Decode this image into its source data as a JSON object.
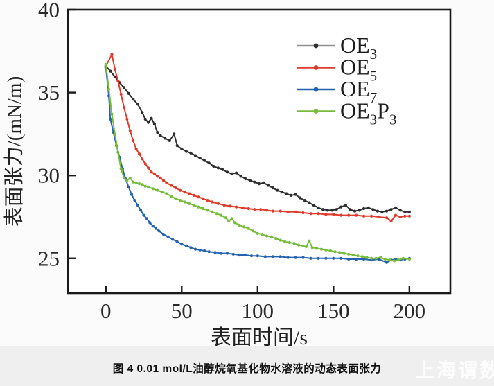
{
  "page": {
    "background": "#fbfbfb",
    "band_background": "#efefef"
  },
  "caption": {
    "text": "图 4  0.01 mol/L油醇烷氧基化物水溶液的动态表面张力"
  },
  "watermark": {
    "text": "上海谓数"
  },
  "chart_data": {
    "type": "line",
    "title": "",
    "xlabel": "表面时间/s",
    "ylabel": "表面张力/(mN/m)",
    "xlim": [
      -25,
      227
    ],
    "ylim": [
      22.9,
      40
    ],
    "xticks": [
      0,
      50,
      100,
      150,
      200
    ],
    "yticks": [
      25,
      30,
      35,
      40
    ],
    "grid": false,
    "legend_position": "upper-right-inside",
    "frame_color": "#1a1a1a",
    "tick_label_color": "#2a2a2a",
    "series": [
      {
        "name": "OE3",
        "label_parts": [
          {
            "text": "OE"
          },
          {
            "sub": "3"
          }
        ],
        "color": "#2e2e2e",
        "legend_line_color": "#8f8f8f",
        "points": [
          [
            0,
            36.6
          ],
          [
            3,
            36.3
          ],
          [
            6,
            35.95
          ],
          [
            9,
            35.6
          ],
          [
            12,
            35.3
          ],
          [
            15,
            34.95
          ],
          [
            18,
            34.6
          ],
          [
            21,
            34.3
          ],
          [
            24,
            33.8
          ],
          [
            26,
            33.4
          ],
          [
            28,
            33.2
          ],
          [
            30,
            33.45
          ],
          [
            32,
            33.1
          ],
          [
            34,
            32.6
          ],
          [
            36,
            32.4
          ],
          [
            39,
            32.25
          ],
          [
            42,
            32.1
          ],
          [
            45,
            32.5
          ],
          [
            47,
            31.8
          ],
          [
            50,
            31.6
          ],
          [
            53,
            31.45
          ],
          [
            56,
            31.35
          ],
          [
            59,
            31.2
          ],
          [
            62,
            31.05
          ],
          [
            65,
            30.9
          ],
          [
            68,
            30.75
          ],
          [
            71,
            30.55
          ],
          [
            74,
            30.45
          ],
          [
            77,
            30.35
          ],
          [
            80,
            30.2
          ],
          [
            83,
            30.1
          ],
          [
            86,
            30.15
          ],
          [
            89,
            29.95
          ],
          [
            92,
            29.8
          ],
          [
            95,
            29.7
          ],
          [
            98,
            29.6
          ],
          [
            101,
            29.5
          ],
          [
            104,
            29.55
          ],
          [
            107,
            29.4
          ],
          [
            110,
            29.25
          ],
          [
            113,
            29.1
          ],
          [
            116,
            29.0
          ],
          [
            119,
            28.9
          ],
          [
            122,
            28.8
          ],
          [
            125,
            28.85
          ],
          [
            128,
            28.65
          ],
          [
            131,
            28.5
          ],
          [
            134,
            28.35
          ],
          [
            137,
            28.2
          ],
          [
            140,
            28.05
          ],
          [
            143,
            27.95
          ],
          [
            146,
            27.9
          ],
          [
            149,
            27.9
          ],
          [
            152,
            27.95
          ],
          [
            155,
            28.1
          ],
          [
            158,
            28.2
          ],
          [
            161,
            27.95
          ],
          [
            164,
            27.85
          ],
          [
            167,
            27.9
          ],
          [
            170,
            28.0
          ],
          [
            173,
            28.05
          ],
          [
            176,
            27.95
          ],
          [
            179,
            27.85
          ],
          [
            182,
            27.8
          ],
          [
            185,
            27.85
          ],
          [
            188,
            27.95
          ],
          [
            191,
            28.05
          ],
          [
            194,
            27.9
          ],
          [
            197,
            27.8
          ],
          [
            200,
            27.8
          ]
        ]
      },
      {
        "name": "OE5",
        "label_parts": [
          {
            "text": "OE"
          },
          {
            "sub": "5"
          }
        ],
        "color": "#e03a2b",
        "legend_line_color": "#e03a2b",
        "points": [
          [
            0,
            36.6
          ],
          [
            4,
            37.3
          ],
          [
            6,
            36.4
          ],
          [
            8,
            35.7
          ],
          [
            10,
            34.9
          ],
          [
            12,
            34.1
          ],
          [
            14,
            33.4
          ],
          [
            16,
            32.7
          ],
          [
            18,
            32.1
          ],
          [
            20,
            31.6
          ],
          [
            22,
            31.3
          ],
          [
            24,
            31.0
          ],
          [
            26,
            30.7
          ],
          [
            28,
            30.45
          ],
          [
            30,
            30.2
          ],
          [
            32,
            30.1
          ],
          [
            34,
            29.95
          ],
          [
            36,
            29.85
          ],
          [
            38,
            29.7
          ],
          [
            40,
            29.55
          ],
          [
            43,
            29.4
          ],
          [
            46,
            29.25
          ],
          [
            49,
            29.1
          ],
          [
            52,
            29.0
          ],
          [
            55,
            28.9
          ],
          [
            58,
            28.8
          ],
          [
            61,
            28.7
          ],
          [
            64,
            28.6
          ],
          [
            67,
            28.5
          ],
          [
            70,
            28.4
          ],
          [
            74,
            28.3
          ],
          [
            78,
            28.2
          ],
          [
            82,
            28.15
          ],
          [
            86,
            28.1
          ],
          [
            90,
            28.05
          ],
          [
            94,
            28.0
          ],
          [
            98,
            27.95
          ],
          [
            102,
            27.95
          ],
          [
            106,
            27.9
          ],
          [
            110,
            27.85
          ],
          [
            115,
            27.85
          ],
          [
            120,
            27.8
          ],
          [
            125,
            27.8
          ],
          [
            130,
            27.75
          ],
          [
            135,
            27.7
          ],
          [
            140,
            27.7
          ],
          [
            145,
            27.65
          ],
          [
            150,
            27.65
          ],
          [
            155,
            27.6
          ],
          [
            160,
            27.6
          ],
          [
            165,
            27.6
          ],
          [
            170,
            27.55
          ],
          [
            175,
            27.55
          ],
          [
            180,
            27.5
          ],
          [
            185,
            27.45
          ],
          [
            188,
            27.25
          ],
          [
            191,
            27.6
          ],
          [
            194,
            27.5
          ],
          [
            197,
            27.55
          ],
          [
            200,
            27.55
          ]
        ]
      },
      {
        "name": "OE7",
        "label_parts": [
          {
            "text": "OE"
          },
          {
            "sub": "7"
          }
        ],
        "color": "#2563ae",
        "legend_line_color": "#2563ae",
        "points": [
          [
            0,
            36.5
          ],
          [
            2,
            34.8
          ],
          [
            3,
            33.4
          ],
          [
            5,
            32.6
          ],
          [
            7,
            31.8
          ],
          [
            9,
            31.1
          ],
          [
            11,
            30.4
          ],
          [
            13,
            29.8
          ],
          [
            15,
            29.3
          ],
          [
            17,
            28.85
          ],
          [
            19,
            28.5
          ],
          [
            21,
            28.2
          ],
          [
            23,
            27.9
          ],
          [
            25,
            27.6
          ],
          [
            27,
            27.4
          ],
          [
            29,
            27.15
          ],
          [
            31,
            26.95
          ],
          [
            33,
            26.8
          ],
          [
            35,
            26.65
          ],
          [
            38,
            26.45
          ],
          [
            41,
            26.3
          ],
          [
            44,
            26.15
          ],
          [
            47,
            26.0
          ],
          [
            50,
            25.85
          ],
          [
            53,
            25.75
          ],
          [
            56,
            25.65
          ],
          [
            59,
            25.55
          ],
          [
            62,
            25.5
          ],
          [
            65,
            25.45
          ],
          [
            68,
            25.4
          ],
          [
            72,
            25.35
          ],
          [
            76,
            25.3
          ],
          [
            80,
            25.3
          ],
          [
            84,
            25.25
          ],
          [
            88,
            25.2
          ],
          [
            92,
            25.2
          ],
          [
            96,
            25.15
          ],
          [
            100,
            25.15
          ],
          [
            105,
            25.1
          ],
          [
            110,
            25.1
          ],
          [
            115,
            25.1
          ],
          [
            120,
            25.05
          ],
          [
            125,
            25.05
          ],
          [
            130,
            25.05
          ],
          [
            135,
            25.0
          ],
          [
            140,
            25.0
          ],
          [
            145,
            25.0
          ],
          [
            150,
            25.0
          ],
          [
            155,
            25.0
          ],
          [
            160,
            24.95
          ],
          [
            165,
            24.95
          ],
          [
            170,
            24.95
          ],
          [
            175,
            24.9
          ],
          [
            180,
            24.95
          ],
          [
            185,
            24.75
          ],
          [
            188,
            24.9
          ],
          [
            191,
            24.95
          ],
          [
            194,
            24.9
          ],
          [
            197,
            24.95
          ],
          [
            200,
            25.0
          ]
        ]
      },
      {
        "name": "OE3P3",
        "label_parts": [
          {
            "text": "OE"
          },
          {
            "sub": "3"
          },
          {
            "text": "P"
          },
          {
            "sub": "3"
          }
        ],
        "color": "#77bd3b",
        "legend_line_color": "#77bd3b",
        "points": [
          [
            0,
            36.7
          ],
          [
            2,
            35.2
          ],
          [
            4,
            33.7
          ],
          [
            6,
            32.5
          ],
          [
            8,
            31.4
          ],
          [
            10,
            30.4
          ],
          [
            12,
            29.85
          ],
          [
            14,
            29.7
          ],
          [
            16,
            29.85
          ],
          [
            18,
            29.6
          ],
          [
            20,
            29.55
          ],
          [
            22,
            29.5
          ],
          [
            24,
            29.45
          ],
          [
            26,
            29.35
          ],
          [
            28,
            29.3
          ],
          [
            31,
            29.2
          ],
          [
            34,
            29.1
          ],
          [
            37,
            29.0
          ],
          [
            40,
            28.9
          ],
          [
            43,
            28.75
          ],
          [
            46,
            28.6
          ],
          [
            49,
            28.5
          ],
          [
            52,
            28.4
          ],
          [
            55,
            28.3
          ],
          [
            58,
            28.2
          ],
          [
            61,
            28.1
          ],
          [
            64,
            28.0
          ],
          [
            67,
            27.9
          ],
          [
            70,
            27.8
          ],
          [
            73,
            27.7
          ],
          [
            76,
            27.6
          ],
          [
            79,
            27.45
          ],
          [
            81,
            27.25
          ],
          [
            83,
            27.4
          ],
          [
            85,
            27.15
          ],
          [
            88,
            27.0
          ],
          [
            91,
            26.9
          ],
          [
            94,
            26.8
          ],
          [
            97,
            26.65
          ],
          [
            100,
            26.5
          ],
          [
            103,
            26.45
          ],
          [
            106,
            26.35
          ],
          [
            109,
            26.3
          ],
          [
            112,
            26.2
          ],
          [
            115,
            26.1
          ],
          [
            118,
            26.0
          ],
          [
            121,
            25.95
          ],
          [
            124,
            25.9
          ],
          [
            127,
            25.8
          ],
          [
            130,
            25.75
          ],
          [
            132,
            25.7
          ],
          [
            134,
            26.05
          ],
          [
            136,
            25.65
          ],
          [
            139,
            25.6
          ],
          [
            142,
            25.55
          ],
          [
            145,
            25.5
          ],
          [
            148,
            25.45
          ],
          [
            151,
            25.4
          ],
          [
            154,
            25.35
          ],
          [
            157,
            25.3
          ],
          [
            160,
            25.25
          ],
          [
            163,
            25.2
          ],
          [
            166,
            25.15
          ],
          [
            169,
            25.1
          ],
          [
            172,
            25.05
          ],
          [
            175,
            25.0
          ],
          [
            178,
            25.0
          ],
          [
            181,
            25.05
          ],
          [
            184,
            24.95
          ],
          [
            187,
            24.9
          ],
          [
            190,
            24.85
          ],
          [
            193,
            24.9
          ],
          [
            196,
            25.0
          ],
          [
            200,
            24.95
          ]
        ]
      }
    ]
  }
}
